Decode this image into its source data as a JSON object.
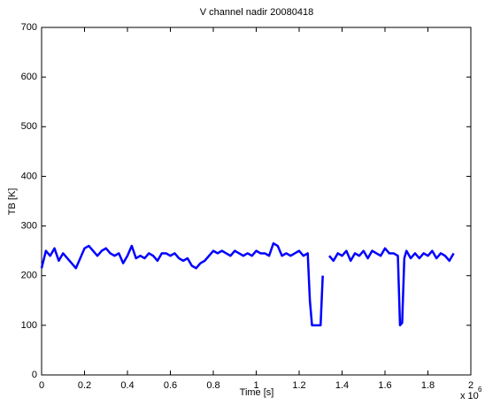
{
  "chart_data": {
    "type": "line",
    "title": "V channel nadir 20080418",
    "x_label": "Time [s]",
    "y_label": "TB [K]",
    "x_scale_base": "x 10",
    "x_scale_exponent": "6",
    "x": [
      0,
      0.02,
      0.04,
      0.06,
      0.08,
      0.1,
      0.12,
      0.14,
      0.16,
      0.18,
      0.2,
      0.22,
      0.24,
      0.26,
      0.28,
      0.3,
      0.32,
      0.34,
      0.36,
      0.38,
      0.4,
      0.42,
      0.44,
      0.46,
      0.48,
      0.5,
      0.52,
      0.54,
      0.56,
      0.58,
      0.6,
      0.62,
      0.64,
      0.66,
      0.68,
      0.7,
      0.72,
      0.74,
      0.76,
      0.78,
      0.8,
      0.82,
      0.84,
      0.86,
      0.88,
      0.9,
      0.92,
      0.94,
      0.96,
      0.98,
      1.0,
      1.02,
      1.04,
      1.06,
      1.08,
      1.1,
      1.12,
      1.14,
      1.16,
      1.18,
      1.2,
      1.22,
      1.24,
      1.25,
      1.26,
      1.28,
      1.3,
      1.31,
      1.32,
      1.34,
      1.36,
      1.38,
      1.4,
      1.42,
      1.44,
      1.46,
      1.48,
      1.5,
      1.52,
      1.54,
      1.56,
      1.58,
      1.6,
      1.62,
      1.64,
      1.66,
      1.67,
      1.68,
      1.69,
      1.7,
      1.72,
      1.74,
      1.76,
      1.78,
      1.8,
      1.82,
      1.84,
      1.86,
      1.88,
      1.9,
      1.92
    ],
    "series": [
      {
        "name": "TB",
        "color": "#0000ff",
        "values": [
          215,
          250,
          240,
          255,
          230,
          245,
          235,
          225,
          215,
          235,
          255,
          260,
          250,
          240,
          250,
          255,
          245,
          240,
          245,
          225,
          240,
          260,
          235,
          240,
          235,
          245,
          240,
          230,
          245,
          245,
          240,
          245,
          235,
          230,
          235,
          220,
          215,
          225,
          230,
          240,
          250,
          245,
          250,
          245,
          240,
          250,
          245,
          240,
          245,
          240,
          250,
          245,
          245,
          240,
          265,
          260,
          240,
          245,
          240,
          245,
          250,
          240,
          245,
          150,
          100,
          100,
          100,
          200,
          null,
          240,
          230,
          245,
          240,
          250,
          230,
          245,
          240,
          250,
          235,
          250,
          245,
          240,
          255,
          245,
          245,
          240,
          100,
          105,
          235,
          250,
          235,
          245,
          235,
          245,
          240,
          250,
          235,
          245,
          240,
          230,
          245
        ]
      }
    ],
    "xlim": [
      0,
      2
    ],
    "xticks": [
      0,
      0.2,
      0.4,
      0.6,
      0.8,
      1,
      1.2,
      1.4,
      1.6,
      1.8,
      2
    ],
    "ylim": [
      0,
      700
    ],
    "yticks": [
      0,
      100,
      200,
      300,
      400,
      500,
      600,
      700
    ],
    "grid": false
  }
}
